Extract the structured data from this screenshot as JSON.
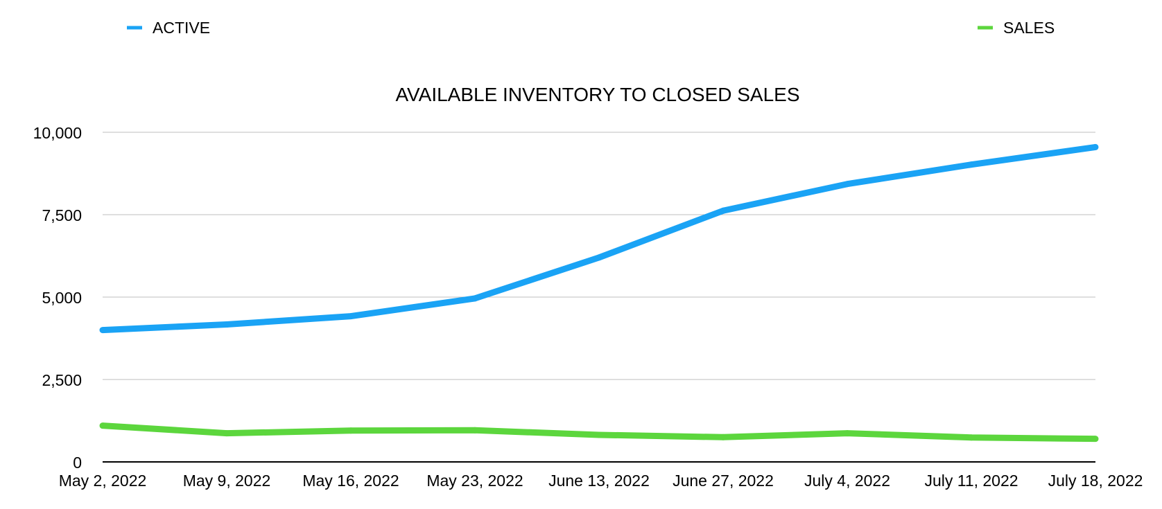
{
  "chart_data": {
    "type": "line",
    "title": "AVAILABLE INVENTORY TO CLOSED SALES",
    "xlabel": "",
    "ylabel": "",
    "categories": [
      "May 2, 2022",
      "May 9, 2022",
      "May 16, 2022",
      "May 23, 2022",
      "June 13, 2022",
      "June 27, 2022",
      "July 4, 2022",
      "July 11, 2022",
      "July 18, 2022"
    ],
    "series": [
      {
        "name": "ACTIVE",
        "color": "#1AA3F5",
        "values": [
          4000,
          4170,
          4420,
          4960,
          6200,
          7620,
          8430,
          9020,
          9550
        ]
      },
      {
        "name": "SALES",
        "color": "#5CD63D",
        "values": [
          1100,
          870,
          950,
          960,
          820,
          750,
          870,
          740,
          700
        ]
      }
    ],
    "ylim": [
      0,
      10000
    ],
    "yticks": [
      0,
      2500,
      5000,
      7500,
      10000
    ],
    "ytick_labels": [
      "0",
      "2,500",
      "5,000",
      "7,500",
      "10,000"
    ],
    "grid": true,
    "legend_placement": "top"
  }
}
